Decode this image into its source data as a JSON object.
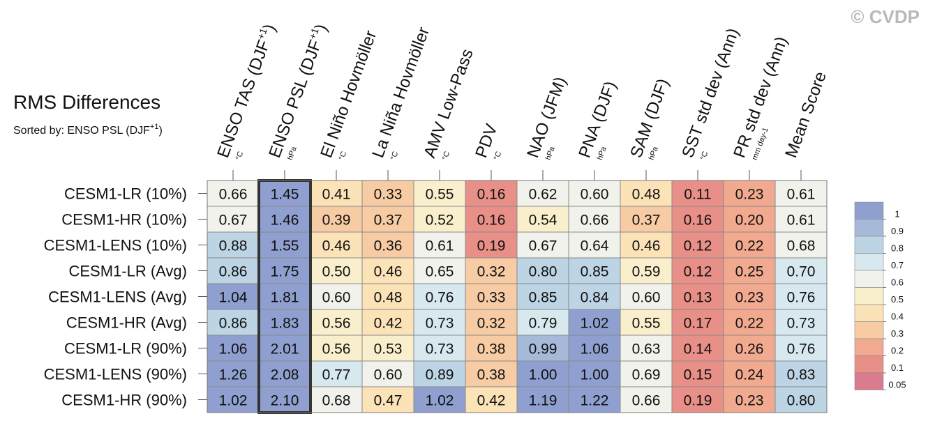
{
  "title": "RMS Differences",
  "subtitle": "Sorted by: ENSO PSL (DJF",
  "subtitle_sup": "+1",
  "subtitle_close": ")",
  "watermark": "© CVDP",
  "highlight_column": 1,
  "chart_data": {
    "type": "heatmap",
    "columns": [
      {
        "label": "ENSO TAS (DJF",
        "sup": "+1",
        "close": ")",
        "unit": "°C"
      },
      {
        "label": "ENSO PSL (DJF",
        "sup": "+1",
        "close": ")",
        "unit": "hPa"
      },
      {
        "label": "El Niño Hovmöller",
        "sup": "",
        "close": "",
        "unit": "°C"
      },
      {
        "label": "La Niña Hovmöller",
        "sup": "",
        "close": "",
        "unit": "°C"
      },
      {
        "label": "AMV Low-Pass",
        "sup": "",
        "close": "",
        "unit": "°C"
      },
      {
        "label": "PDV",
        "sup": "",
        "close": "",
        "unit": "°C"
      },
      {
        "label": "NAO (JFM)",
        "sup": "",
        "close": "",
        "unit": "hPa"
      },
      {
        "label": "PNA (DJF)",
        "sup": "",
        "close": "",
        "unit": "hPa"
      },
      {
        "label": "SAM (DJF)",
        "sup": "",
        "close": "",
        "unit": "hPa"
      },
      {
        "label": "SST std dev (Ann)",
        "sup": "",
        "close": "",
        "unit": "°C"
      },
      {
        "label": "PR std dev (Ann)",
        "sup": "",
        "close": "",
        "unit": "mm day-1"
      },
      {
        "label": "Mean Score",
        "sup": "",
        "close": "",
        "unit": ""
      }
    ],
    "rows": [
      "CESM1-LR (10%)",
      "CESM1-HR (10%)",
      "CESM1-LENS (10%)",
      "CESM1-LR (Avg)",
      "CESM1-LENS (Avg)",
      "CESM1-HR (Avg)",
      "CESM1-LR (90%)",
      "CESM1-LENS (90%)",
      "CESM1-HR (90%)"
    ],
    "values": [
      [
        0.66,
        1.45,
        0.41,
        0.33,
        0.55,
        0.16,
        0.62,
        0.6,
        0.48,
        0.11,
        0.23,
        0.61
      ],
      [
        0.67,
        1.46,
        0.39,
        0.37,
        0.52,
        0.16,
        0.54,
        0.66,
        0.37,
        0.16,
        0.2,
        0.61
      ],
      [
        0.88,
        1.55,
        0.46,
        0.36,
        0.61,
        0.19,
        0.67,
        0.64,
        0.46,
        0.12,
        0.22,
        0.68
      ],
      [
        0.86,
        1.75,
        0.5,
        0.46,
        0.65,
        0.32,
        0.8,
        0.85,
        0.59,
        0.12,
        0.25,
        0.7
      ],
      [
        1.04,
        1.81,
        0.6,
        0.48,
        0.76,
        0.33,
        0.85,
        0.84,
        0.6,
        0.13,
        0.23,
        0.76
      ],
      [
        0.86,
        1.83,
        0.56,
        0.42,
        0.73,
        0.32,
        0.79,
        1.02,
        0.55,
        0.17,
        0.22,
        0.73
      ],
      [
        1.06,
        2.01,
        0.56,
        0.53,
        0.73,
        0.38,
        0.99,
        1.06,
        0.63,
        0.14,
        0.26,
        0.76
      ],
      [
        1.26,
        2.08,
        0.77,
        0.6,
        0.89,
        0.38,
        1.0,
        1.0,
        0.69,
        0.15,
        0.24,
        0.83
      ],
      [
        1.02,
        2.1,
        0.68,
        0.47,
        1.02,
        0.42,
        1.19,
        1.22,
        0.66,
        0.19,
        0.23,
        0.8
      ]
    ],
    "colorbar": {
      "labels": [
        "1",
        "0.9",
        "0.8",
        "0.7",
        "0.6",
        "0.5",
        "0.4",
        "0.3",
        "0.2",
        "0.1",
        "0.05"
      ],
      "colors": [
        "#8f9fcf",
        "#a6b9d9",
        "#bcd4e4",
        "#d7e8ef",
        "#f2f2ec",
        "#faefcc",
        "#fbe2b7",
        "#f7cba3",
        "#f1a98f",
        "#e88f88",
        "#d97c8d"
      ]
    }
  }
}
